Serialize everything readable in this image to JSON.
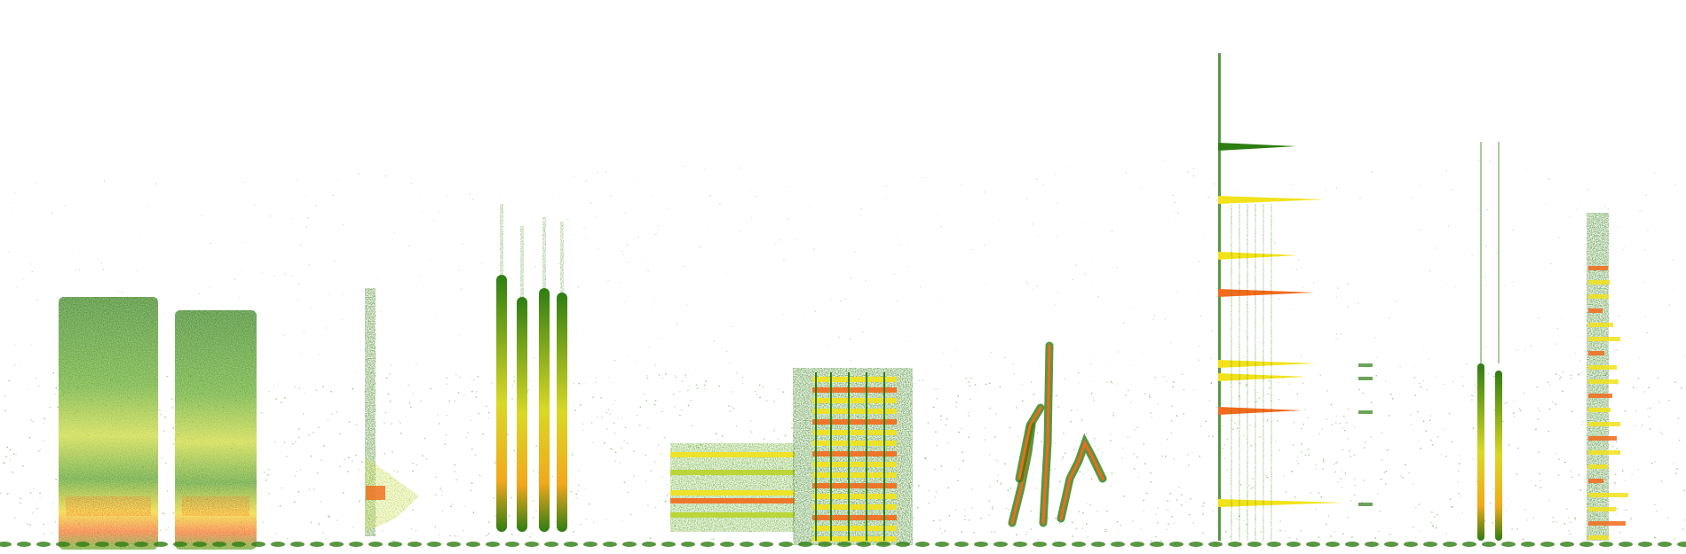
{
  "image": {
    "kind": "spectrogram",
    "background": "#ffffff",
    "palette": {
      "low": "#2e7d12",
      "mid_low": "#5aa51d",
      "mid": "#b9d42a",
      "high": "#f2e21a",
      "peak": "#f26a1b"
    },
    "events": [
      {
        "name": "broadband-block-1"
      },
      {
        "name": "broadband-block-2"
      },
      {
        "name": "narrow-burst"
      },
      {
        "name": "vertical-pulses"
      },
      {
        "name": "tonal-horizontal-band"
      },
      {
        "name": "harmonic-comb"
      },
      {
        "name": "frequency-sweeps"
      },
      {
        "name": "harmonic-stack-tall"
      },
      {
        "name": "thin-pulses"
      },
      {
        "name": "stacked-ticks"
      }
    ]
  }
}
